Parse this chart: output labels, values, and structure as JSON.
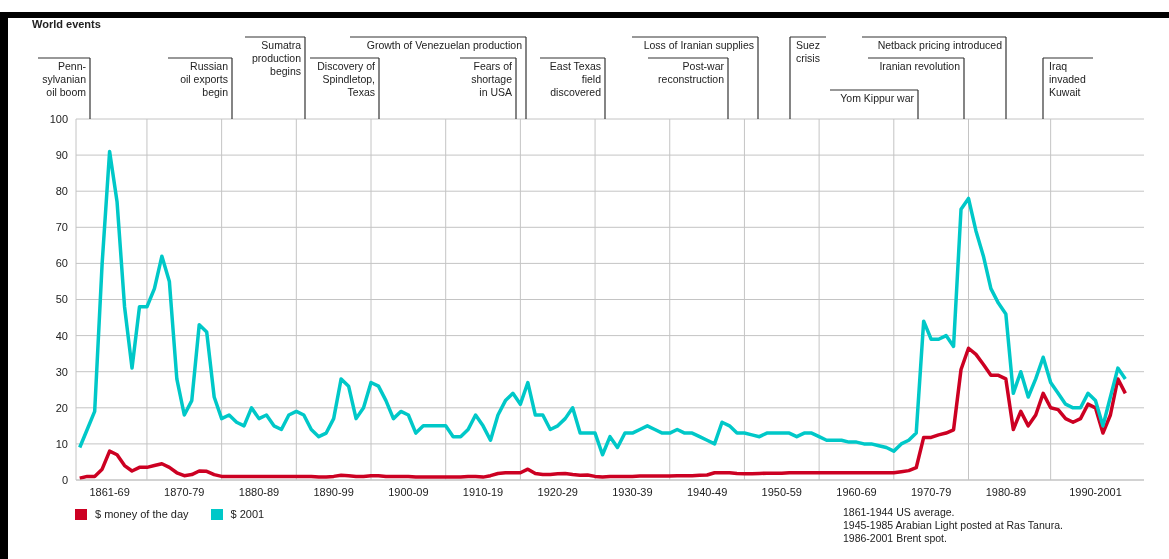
{
  "chart_data": {
    "type": "line",
    "title": "World events",
    "categories": [
      null,
      null,
      null,
      null,
      "1861-69",
      null,
      null,
      null,
      null,
      null,
      null,
      null,
      null,
      null,
      "1870-79",
      null,
      null,
      null,
      null,
      null,
      null,
      null,
      null,
      null,
      "1880-89",
      null,
      null,
      null,
      null,
      null,
      null,
      null,
      null,
      null,
      "1890-99",
      null,
      null,
      null,
      null,
      null,
      null,
      null,
      null,
      null,
      "1900-09",
      null,
      null,
      null,
      null,
      null,
      null,
      null,
      null,
      null,
      "1910-19",
      null,
      null,
      null,
      null,
      null,
      null,
      null,
      null,
      null,
      "1920-29",
      null,
      null,
      null,
      null,
      null,
      null,
      null,
      null,
      null,
      "1930-39",
      null,
      null,
      null,
      null,
      null,
      null,
      null,
      null,
      null,
      "1940-49",
      null,
      null,
      null,
      null,
      null,
      null,
      null,
      null,
      null,
      "1950-59",
      null,
      null,
      null,
      null,
      null,
      null,
      null,
      null,
      null,
      "1960-69",
      null,
      null,
      null,
      null,
      null,
      null,
      null,
      null,
      null,
      "1970-79",
      null,
      null,
      null,
      null,
      null,
      null,
      null,
      null,
      null,
      "1980-89",
      null,
      null,
      null,
      null,
      null,
      null,
      null,
      null,
      null,
      null,
      null,
      "1990-2001",
      null,
      null,
      null,
      null
    ],
    "series": [
      {
        "name": "$ money of the day",
        "color": "#cc0022",
        "values": [
          0.5,
          1,
          1,
          3,
          8,
          7,
          4,
          2.5,
          3.5,
          3.5,
          4,
          4.5,
          3.5,
          2,
          1.2,
          1.5,
          2.5,
          2.4,
          1.5,
          1,
          1,
          1,
          1,
          1,
          1,
          1,
          1,
          1,
          1,
          1,
          1,
          1,
          0.8,
          0.8,
          1,
          1.3,
          1.2,
          1,
          1,
          1.2,
          1.2,
          1,
          1,
          1,
          1,
          0.8,
          0.8,
          0.8,
          0.8,
          0.8,
          0.8,
          0.8,
          1,
          1,
          0.8,
          1.2,
          1.8,
          2,
          2,
          2,
          3,
          1.8,
          1.5,
          1.5,
          1.7,
          1.8,
          1.5,
          1.3,
          1.4,
          1,
          0.8,
          1,
          1,
          1,
          1,
          1.1,
          1.1,
          1.1,
          1.1,
          1.1,
          1.2,
          1.2,
          1.2,
          1.3,
          1.4,
          2,
          2,
          2,
          1.8,
          1.7,
          1.7,
          1.8,
          1.9,
          1.9,
          1.9,
          2,
          2,
          2,
          2,
          2,
          2,
          2,
          2,
          2,
          2,
          2,
          2,
          2,
          2,
          2,
          2.3,
          2.6,
          3.4,
          11.8,
          11.8,
          12.5,
          13,
          13.9,
          30.6,
          36.5,
          34.8,
          32,
          29,
          29,
          28,
          14,
          19,
          15,
          18,
          24,
          20,
          19.5,
          17,
          16,
          17,
          21,
          20,
          13,
          18,
          28,
          24
        ]
      },
      {
        "name": "$ 2001",
        "color": "#00c8c8",
        "values": [
          9,
          14,
          19,
          60,
          91,
          77,
          48,
          31,
          48,
          48,
          53,
          62,
          55,
          28,
          18,
          22,
          43,
          41,
          23,
          17,
          18,
          16,
          15,
          20,
          17,
          18,
          15,
          14,
          18,
          19,
          18,
          14,
          12,
          13,
          17,
          28,
          26,
          17,
          20,
          27,
          26,
          22,
          17,
          19,
          18,
          13,
          15,
          15,
          15,
          15,
          12,
          12,
          14,
          18,
          15,
          11,
          18,
          22,
          24,
          21,
          27,
          18,
          18,
          14,
          15,
          17,
          20,
          13,
          13,
          13,
          7,
          12,
          9,
          13,
          13,
          14,
          15,
          14,
          13,
          13,
          14,
          13,
          13,
          12,
          11,
          10,
          16,
          15,
          13,
          13,
          12.5,
          12,
          13,
          13,
          13,
          13,
          12,
          13,
          13,
          12,
          11,
          11,
          11,
          10.5,
          10.5,
          10,
          10,
          9.5,
          9,
          8,
          10,
          11,
          13,
          44,
          39,
          39,
          40,
          37,
          75,
          78,
          69,
          62,
          53,
          49,
          46,
          24,
          30,
          23,
          28,
          34,
          27,
          24,
          21,
          20,
          20,
          24,
          22,
          15,
          23,
          31,
          28
        ]
      }
    ],
    "ylim": [
      0,
      100
    ],
    "yticks": [
      0,
      10,
      20,
      30,
      40,
      50,
      60,
      70,
      80,
      90,
      100
    ],
    "grid": true,
    "legend": "bottom left",
    "annotations": [
      "Penn-\nsylvanian\noil boom",
      "Russian\noil exports\nbegin",
      "Sumatra\nproduction\nbegins",
      "Discovery of\nSpindletop,\nTexas",
      "Growth of Venezuelan production",
      "Fears of\nshortage\nin USA",
      "East Texas\nfield\ndiscovered",
      "Loss of Iranian supplies",
      "Post-war\nreconstruction",
      "Suez\ncrisis",
      "Yom Kippur war",
      "Iranian revolution",
      "Netback pricing introduced",
      "Iraq\ninvaded\nKuwait",
      "1861-1944 US average.",
      "1945-1985 Arabian Light posted at Ras Tanura.",
      "1986-2001 Brent spot."
    ]
  }
}
